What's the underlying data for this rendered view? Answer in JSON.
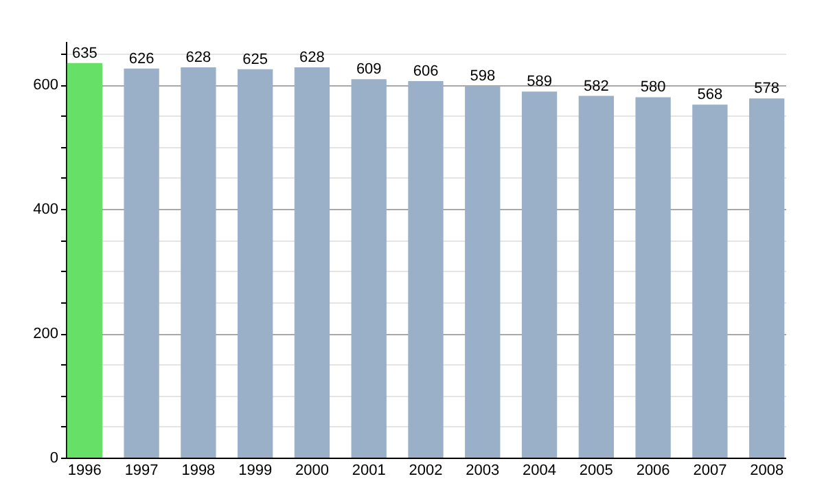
{
  "chart_data": {
    "type": "bar",
    "categories": [
      "1996",
      "1997",
      "1998",
      "1999",
      "2000",
      "2001",
      "2002",
      "2003",
      "2004",
      "2005",
      "2006",
      "2007",
      "2008"
    ],
    "values": [
      635,
      626,
      628,
      625,
      628,
      609,
      606,
      598,
      589,
      582,
      580,
      568,
      578
    ],
    "colors": [
      "#66e066",
      "#9ab0c8",
      "#9ab0c8",
      "#9ab0c8",
      "#9ab0c8",
      "#9ab0c8",
      "#9ab0c8",
      "#9ab0c8",
      "#9ab0c8",
      "#9ab0c8",
      "#9ab0c8",
      "#9ab0c8",
      "#9ab0c8"
    ],
    "ylim": [
      0,
      670
    ],
    "yticks": [
      0,
      {
        "value": 50,
        "label": null
      },
      {
        "value": 100,
        "label": null
      },
      {
        "value": 150,
        "label": null
      },
      200,
      {
        "value": 250,
        "label": null
      },
      {
        "value": 300,
        "label": null
      },
      {
        "value": 350,
        "label": null
      },
      400,
      {
        "value": 450,
        "label": null
      },
      {
        "value": 500,
        "label": null
      },
      {
        "value": 550,
        "label": null
      },
      600,
      {
        "value": 650,
        "label": null
      }
    ],
    "grid": true,
    "data_labels": true
  }
}
